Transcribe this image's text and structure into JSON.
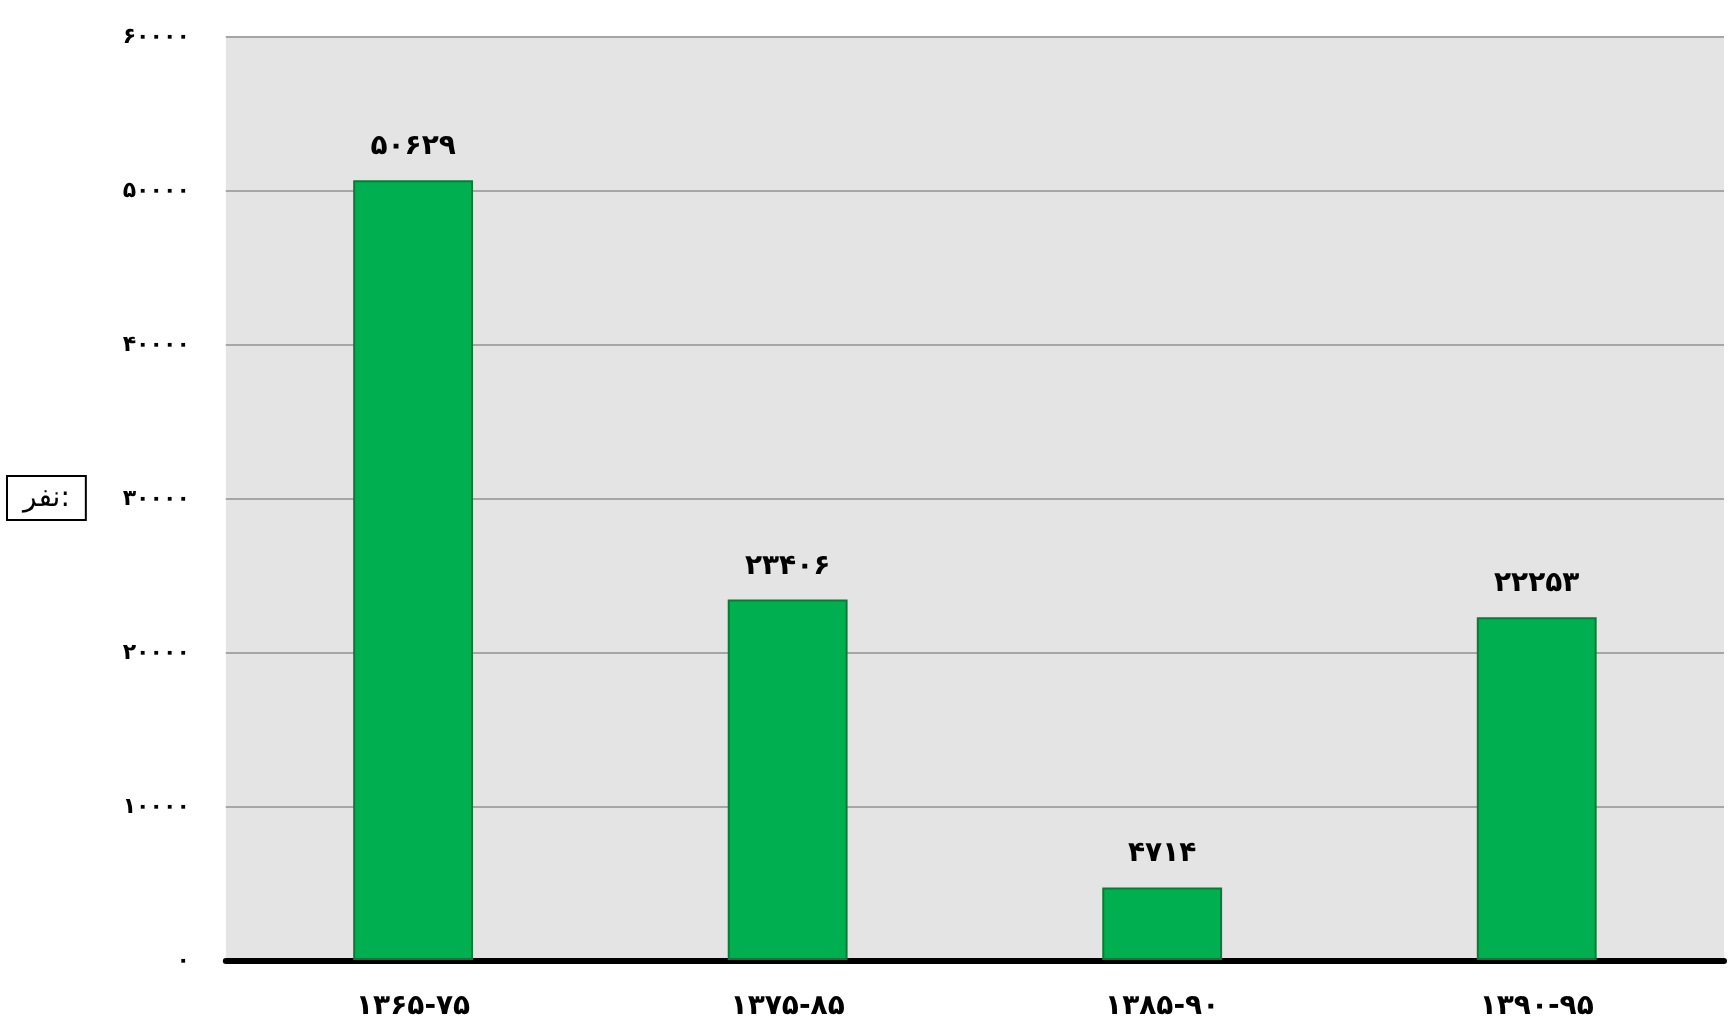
{
  "chart_data": {
    "type": "bar",
    "ylabel": "نفر:",
    "categories": [
      "۱۳۶۵-۷۵",
      "۱۳۷۵-۸۵",
      "۱۳۸۵-۹۰",
      "۱۳۹۰-۹۵"
    ],
    "values": [
      50629,
      23406,
      4714,
      22253
    ],
    "color": "#00b050",
    "value_labels": [
      "۵۰۶۲۹",
      "۲۳۴۰۶",
      "۴۷۱۴",
      "۲۲۲۵۳"
    ],
    "ylim": [
      0,
      60000
    ],
    "yticks": [
      {
        "value": 0,
        "label": "۰"
      },
      {
        "value": 10000,
        "label": "۱۰۰۰۰"
      },
      {
        "value": 20000,
        "label": "۲۰۰۰۰"
      },
      {
        "value": 30000,
        "label": "۳۰۰۰۰"
      },
      {
        "value": 40000,
        "label": "۴۰۰۰۰"
      },
      {
        "value": 50000,
        "label": "۵۰۰۰۰"
      },
      {
        "value": 60000,
        "label": "۶۰۰۰۰"
      }
    ],
    "grid": "y"
  }
}
